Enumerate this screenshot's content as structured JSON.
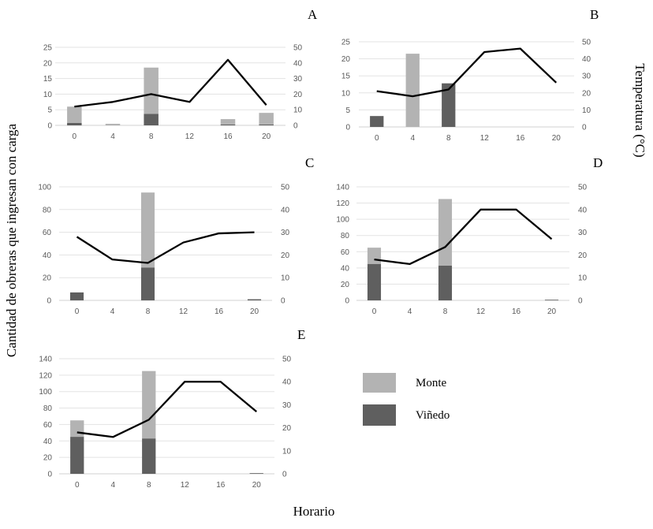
{
  "y_label": "Cantidad de obreras que ingresan con carga",
  "y2_label": "Temperatura (°C)",
  "x_label": "Horario",
  "legend": [
    {
      "name": "Monte",
      "color": "#b3b3b3"
    },
    {
      "name": "Viñedo",
      "color": "#5f5f5f"
    }
  ],
  "line_color": "#000000",
  "chart_data": [
    {
      "panel": "A",
      "type": "bar+line",
      "stacked": true,
      "categories": [
        "0",
        "4",
        "8",
        "12",
        "16",
        "20"
      ],
      "ylim": [
        0,
        25
      ],
      "yticks": [
        "0",
        "5",
        "10",
        "15",
        "20",
        "25"
      ],
      "y2lim": [
        0,
        50
      ],
      "y2ticks": [
        "0",
        "10",
        "20",
        "30",
        "40",
        "50"
      ],
      "series": [
        {
          "name": "Viñedo",
          "values": [
            0.8,
            0,
            3.7,
            0,
            0.3,
            0.3
          ]
        },
        {
          "name": "Monte",
          "values": [
            5.2,
            0.5,
            14.8,
            0,
            1.7,
            3.7
          ]
        }
      ],
      "temperature": [
        12,
        15,
        20,
        15,
        42,
        13
      ],
      "grid": true
    },
    {
      "panel": "B",
      "type": "bar+line",
      "stacked": true,
      "categories": [
        "0",
        "4",
        "8",
        "12",
        "16",
        "20"
      ],
      "ylim": [
        0,
        25
      ],
      "yticks": [
        "0",
        "5",
        "10",
        "15",
        "20",
        "25"
      ],
      "y2lim": [
        0,
        50
      ],
      "y2ticks": [
        "0",
        "10",
        "20",
        "30",
        "40",
        "50"
      ],
      "series": [
        {
          "name": "Viñedo",
          "values": [
            3.2,
            0,
            12.8,
            0,
            0,
            0
          ]
        },
        {
          "name": "Monte",
          "values": [
            0,
            21.5,
            0,
            0,
            0,
            0
          ]
        }
      ],
      "temperature": [
        21,
        18,
        22,
        44,
        46,
        26
      ],
      "grid": true
    },
    {
      "panel": "C",
      "type": "bar+line",
      "stacked": true,
      "categories": [
        "0",
        "4",
        "8",
        "12",
        "16",
        "20"
      ],
      "ylim": [
        0,
        100
      ],
      "yticks": [
        "0",
        "20",
        "40",
        "60",
        "80",
        "100"
      ],
      "y2lim": [
        0,
        50
      ],
      "y2ticks": [
        "0",
        "10",
        "20",
        "30",
        "40",
        "50"
      ],
      "series": [
        {
          "name": "Viñedo",
          "values": [
            7,
            0,
            29,
            0,
            0,
            1
          ]
        },
        {
          "name": "Monte",
          "values": [
            0,
            0,
            66,
            0,
            0,
            0
          ]
        }
      ],
      "temperature": [
        28,
        18,
        16.5,
        25.5,
        29.5,
        30
      ],
      "grid": true
    },
    {
      "panel": "D",
      "type": "bar+line",
      "stacked": true,
      "categories": [
        "0",
        "4",
        "8",
        "12",
        "16",
        "20"
      ],
      "ylim": [
        0,
        140
      ],
      "yticks": [
        "0",
        "20",
        "40",
        "60",
        "80",
        "100",
        "120",
        "140"
      ],
      "y2lim": [
        0,
        50
      ],
      "y2ticks": [
        "0",
        "10",
        "20",
        "30",
        "40",
        "50"
      ],
      "series": [
        {
          "name": "Viñedo",
          "values": [
            45,
            0,
            43,
            0,
            0,
            0.8
          ]
        },
        {
          "name": "Monte",
          "values": [
            20,
            0,
            82,
            0,
            0,
            0
          ]
        }
      ],
      "temperature": [
        18,
        16,
        23.5,
        40,
        40,
        27
      ],
      "grid": true
    },
    {
      "panel": "E",
      "type": "bar+line",
      "stacked": true,
      "categories": [
        "0",
        "4",
        "8",
        "12",
        "16",
        "20"
      ],
      "ylim": [
        0,
        140
      ],
      "yticks": [
        "0",
        "20",
        "40",
        "60",
        "80",
        "100",
        "120",
        "140"
      ],
      "y2lim": [
        0,
        50
      ],
      "y2ticks": [
        "0",
        "10",
        "20",
        "30",
        "40",
        "50"
      ],
      "series": [
        {
          "name": "Viñedo",
          "values": [
            45,
            0,
            43,
            0,
            0,
            0.8
          ]
        },
        {
          "name": "Monte",
          "values": [
            20,
            0,
            82,
            0,
            0,
            0
          ]
        }
      ],
      "temperature": [
        18,
        16,
        23.5,
        40,
        40,
        27
      ],
      "grid": true
    }
  ]
}
